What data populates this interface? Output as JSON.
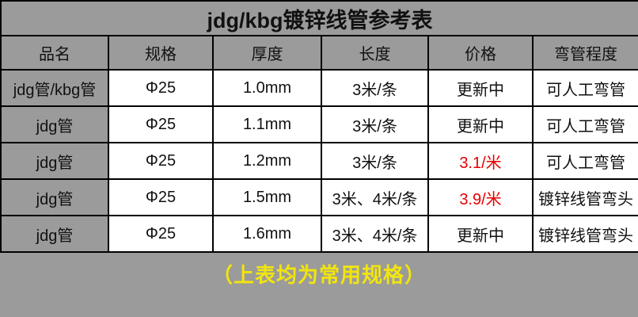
{
  "page": {
    "title": "jdg/kbg镀锌线管参考表",
    "footer_note": "（上表均为常用规格）"
  },
  "table": {
    "columns": [
      "品名",
      "规格",
      "厚度",
      "长度",
      "价格",
      "弯管程度"
    ],
    "price_column_index": 4,
    "rows": [
      {
        "cells": [
          "jdg管/kbg管",
          "Φ25",
          "1.0mm",
          "3米/条",
          "更新中",
          "可人工弯管"
        ],
        "price_red": false
      },
      {
        "cells": [
          "jdg管",
          "Φ25",
          "1.1mm",
          "3米/条",
          "更新中",
          "可人工弯管"
        ],
        "price_red": false
      },
      {
        "cells": [
          "jdg管",
          "Φ25",
          "1.2mm",
          "3米/条",
          "3.1/米",
          "可人工弯管"
        ],
        "price_red": true
      },
      {
        "cells": [
          "jdg管",
          "Φ25",
          "1.5mm",
          "3米、4米/条",
          "3.9/米",
          "镀锌线管弯头"
        ],
        "price_red": true
      },
      {
        "cells": [
          "jdg管",
          "Φ25",
          "1.6mm",
          "3米、4米/条",
          "更新中",
          "镀锌线管弯头"
        ],
        "price_red": false
      }
    ]
  },
  "colors": {
    "page_bg": "#9b9b9b",
    "cell_bg": "#ffffff",
    "border_color": "#000000",
    "price_red": "#e60000",
    "footer_yellow": "#f2e50e",
    "text_color": "#111111"
  }
}
